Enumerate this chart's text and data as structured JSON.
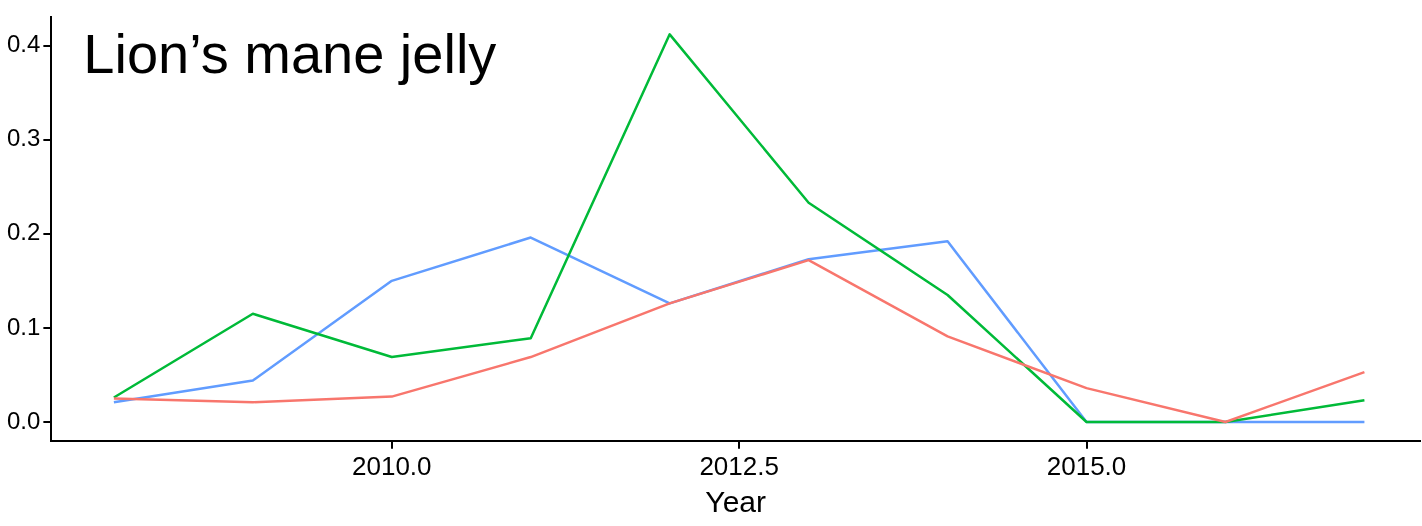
{
  "chart_data": {
    "type": "line",
    "title": "Lion’s mane jelly",
    "xlabel": "Year",
    "x": [
      2008,
      2009,
      2010,
      2011,
      2012,
      2013,
      2014,
      2015,
      2016,
      2017
    ],
    "series": [
      {
        "color": "#f8766d",
        "values": [
          0.025,
          0.021,
          0.027,
          0.069,
          0.126,
          0.172,
          0.091,
          0.036,
          0,
          0.053
        ]
      },
      {
        "color": "#00ba38",
        "values": [
          0.026,
          0.115,
          0.069,
          0.089,
          0.412,
          0.233,
          0.135,
          0,
          0,
          0.023
        ]
      },
      {
        "color": "#619cff",
        "values": [
          0.021,
          0.044,
          0.15,
          0.196,
          0.126,
          0.173,
          0.192,
          0,
          0,
          0
        ]
      }
    ],
    "xlim": [
      2007.55,
      2017.4
    ],
    "ylim": [
      -0.02,
      0.43
    ],
    "xticks": [
      {
        "value": 2010,
        "label": "2010.0"
      },
      {
        "value": 2012.5,
        "label": "2012.5"
      },
      {
        "value": 2015,
        "label": "2015.0"
      }
    ],
    "yticks": [
      {
        "value": 0,
        "label": "0.0"
      },
      {
        "value": 0.1,
        "label": "0.1"
      },
      {
        "value": 0.2,
        "label": "0.2"
      },
      {
        "value": 0.3,
        "label": "0.3"
      },
      {
        "value": 0.4,
        "label": "0.4"
      }
    ],
    "grid": false,
    "legend": false,
    "marker": "none",
    "line_style": "solid"
  }
}
